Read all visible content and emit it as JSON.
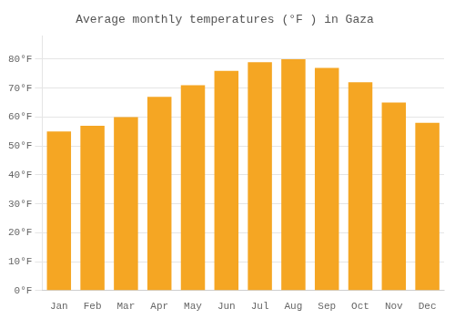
{
  "chart_data": {
    "type": "bar",
    "title": "Average monthly temperatures (°F ) in Gaza",
    "categories": [
      "Jan",
      "Feb",
      "Mar",
      "Apr",
      "May",
      "Jun",
      "Jul",
      "Aug",
      "Sep",
      "Oct",
      "Nov",
      "Dec"
    ],
    "values": [
      55,
      57,
      60,
      67,
      71,
      76,
      79,
      80,
      77,
      72,
      65,
      58
    ],
    "color": "#F5A623",
    "ylim": [
      0,
      88
    ],
    "yticks": [
      {
        "value": 0,
        "label": "0°F"
      },
      {
        "value": 10,
        "label": "10°F"
      },
      {
        "value": 20,
        "label": "20°F"
      },
      {
        "value": 30,
        "label": "30°F"
      },
      {
        "value": 40,
        "label": "40°F"
      },
      {
        "value": 50,
        "label": "50°F"
      },
      {
        "value": 60,
        "label": "60°F"
      },
      {
        "value": 70,
        "label": "70°F"
      },
      {
        "value": 80,
        "label": "80°F"
      }
    ],
    "grid": true
  }
}
